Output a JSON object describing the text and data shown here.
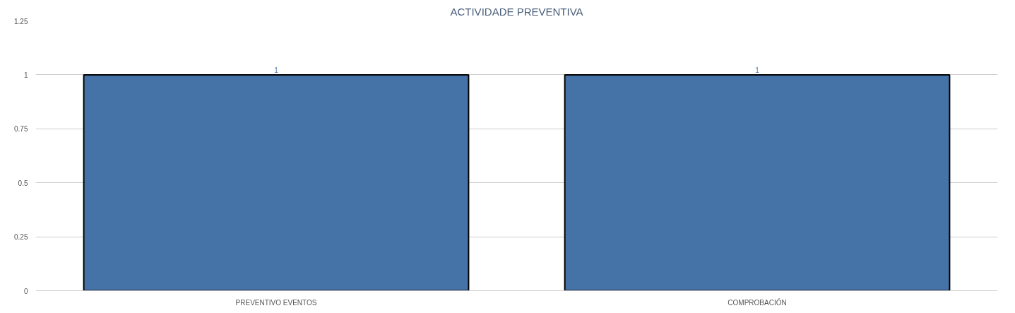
{
  "chart_data": {
    "type": "bar",
    "title": "ACTIVIDADE PREVENTIVA",
    "categories": [
      "PREVENTIVO EVENTOS",
      "COMPROBACIÓN"
    ],
    "values": [
      1,
      1
    ],
    "color": "#4673a7",
    "ylim": [
      0,
      1.25
    ],
    "yticks": [
      0,
      0.25,
      0.5,
      0.75,
      1,
      1.25
    ],
    "grid": "y",
    "data_labels": true
  }
}
